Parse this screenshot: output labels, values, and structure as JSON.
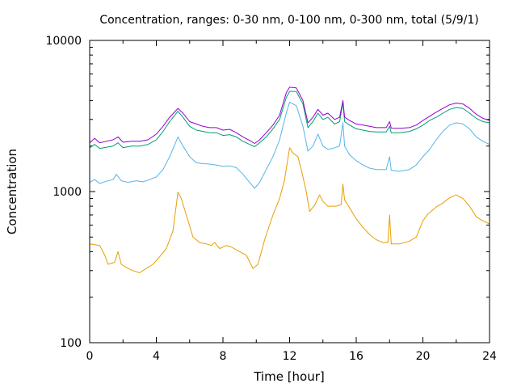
{
  "chart_data": {
    "type": "line",
    "title": "Concentration, ranges: 0-30 nm, 0-100 nm, 0-300 nm, total (5/9/1)",
    "xlabel": "Time [hour]",
    "ylabel": "Concentration",
    "xlim": [
      0,
      24
    ],
    "ylim": [
      100,
      10000
    ],
    "yscale": "log",
    "grid": false,
    "legend": "none",
    "x_ticks": [
      0,
      4,
      8,
      12,
      16,
      20,
      24
    ],
    "x_tick_labels": [
      "0",
      "4",
      "8",
      "12",
      "16",
      "20",
      "24"
    ],
    "y_ticks": [
      100,
      1000,
      10000
    ],
    "y_tick_labels": [
      "100",
      "1000",
      "10000"
    ],
    "series": [
      {
        "color": "#e69f00",
        "points": [
          [
            0,
            450
          ],
          [
            0.6,
            440
          ],
          [
            0.9,
            380
          ],
          [
            1.1,
            330
          ],
          [
            1.5,
            340
          ],
          [
            1.7,
            400
          ],
          [
            1.9,
            330
          ],
          [
            2.3,
            310
          ],
          [
            2.6,
            300
          ],
          [
            3.0,
            290
          ],
          [
            3.4,
            310
          ],
          [
            3.8,
            330
          ],
          [
            4.2,
            370
          ],
          [
            4.6,
            420
          ],
          [
            5.0,
            550
          ],
          [
            5.3,
            990
          ],
          [
            5.5,
            900
          ],
          [
            5.8,
            700
          ],
          [
            6.2,
            500
          ],
          [
            6.6,
            460
          ],
          [
            7.0,
            450
          ],
          [
            7.3,
            440
          ],
          [
            7.5,
            460
          ],
          [
            7.8,
            420
          ],
          [
            8.2,
            440
          ],
          [
            8.5,
            430
          ],
          [
            9.0,
            400
          ],
          [
            9.4,
            380
          ],
          [
            9.8,
            310
          ],
          [
            10.1,
            330
          ],
          [
            10.5,
            480
          ],
          [
            11.0,
            700
          ],
          [
            11.4,
            900
          ],
          [
            11.7,
            1200
          ],
          [
            12.0,
            1950
          ],
          [
            12.2,
            1800
          ],
          [
            12.5,
            1700
          ],
          [
            12.7,
            1400
          ],
          [
            13.0,
            1000
          ],
          [
            13.2,
            740
          ],
          [
            13.5,
            810
          ],
          [
            13.8,
            950
          ],
          [
            14.0,
            860
          ],
          [
            14.3,
            800
          ],
          [
            14.8,
            800
          ],
          [
            15.1,
            820
          ],
          [
            15.2,
            1120
          ],
          [
            15.3,
            880
          ],
          [
            15.6,
            780
          ],
          [
            16.0,
            660
          ],
          [
            16.4,
            580
          ],
          [
            16.8,
            520
          ],
          [
            17.2,
            480
          ],
          [
            17.6,
            460
          ],
          [
            17.9,
            460
          ],
          [
            18.0,
            700
          ],
          [
            18.1,
            450
          ],
          [
            18.6,
            450
          ],
          [
            19.2,
            470
          ],
          [
            19.6,
            500
          ],
          [
            20.0,
            640
          ],
          [
            20.3,
            710
          ],
          [
            20.8,
            790
          ],
          [
            21.2,
            840
          ],
          [
            21.6,
            910
          ],
          [
            22.0,
            950
          ],
          [
            22.4,
            900
          ],
          [
            22.8,
            800
          ],
          [
            23.2,
            680
          ],
          [
            23.6,
            640
          ],
          [
            24.0,
            610
          ]
        ]
      },
      {
        "color": "#56b4e9",
        "points": [
          [
            0,
            1150
          ],
          [
            0.3,
            1200
          ],
          [
            0.6,
            1130
          ],
          [
            1.0,
            1170
          ],
          [
            1.4,
            1200
          ],
          [
            1.6,
            1300
          ],
          [
            1.9,
            1180
          ],
          [
            2.3,
            1150
          ],
          [
            2.8,
            1180
          ],
          [
            3.2,
            1160
          ],
          [
            3.6,
            1200
          ],
          [
            4.0,
            1250
          ],
          [
            4.4,
            1400
          ],
          [
            4.8,
            1700
          ],
          [
            5.3,
            2300
          ],
          [
            5.6,
            2000
          ],
          [
            6.0,
            1700
          ],
          [
            6.4,
            1550
          ],
          [
            6.8,
            1530
          ],
          [
            7.2,
            1520
          ],
          [
            7.6,
            1500
          ],
          [
            8.0,
            1470
          ],
          [
            8.4,
            1480
          ],
          [
            8.8,
            1440
          ],
          [
            9.2,
            1300
          ],
          [
            9.6,
            1150
          ],
          [
            9.9,
            1050
          ],
          [
            10.2,
            1150
          ],
          [
            10.6,
            1400
          ],
          [
            11.0,
            1700
          ],
          [
            11.4,
            2200
          ],
          [
            11.8,
            3300
          ],
          [
            12.0,
            3900
          ],
          [
            12.4,
            3700
          ],
          [
            12.8,
            2700
          ],
          [
            13.1,
            1850
          ],
          [
            13.4,
            2000
          ],
          [
            13.7,
            2400
          ],
          [
            14.0,
            2000
          ],
          [
            14.3,
            1900
          ],
          [
            14.7,
            1950
          ],
          [
            15.0,
            2000
          ],
          [
            15.2,
            2850
          ],
          [
            15.3,
            2000
          ],
          [
            15.6,
            1750
          ],
          [
            16.0,
            1600
          ],
          [
            16.4,
            1500
          ],
          [
            16.8,
            1430
          ],
          [
            17.2,
            1400
          ],
          [
            17.8,
            1400
          ],
          [
            18.0,
            1700
          ],
          [
            18.1,
            1380
          ],
          [
            18.6,
            1360
          ],
          [
            19.2,
            1400
          ],
          [
            19.6,
            1500
          ],
          [
            20.0,
            1700
          ],
          [
            20.4,
            1900
          ],
          [
            20.8,
            2200
          ],
          [
            21.2,
            2500
          ],
          [
            21.6,
            2750
          ],
          [
            22.0,
            2850
          ],
          [
            22.4,
            2800
          ],
          [
            22.8,
            2600
          ],
          [
            23.2,
            2300
          ],
          [
            23.6,
            2150
          ],
          [
            24.0,
            2050
          ]
        ]
      },
      {
        "color": "#009e73",
        "points": [
          [
            0,
            1950
          ],
          [
            0.3,
            2050
          ],
          [
            0.6,
            1930
          ],
          [
            1.0,
            1960
          ],
          [
            1.4,
            2000
          ],
          [
            1.7,
            2100
          ],
          [
            2.0,
            1950
          ],
          [
            2.5,
            2000
          ],
          [
            3.0,
            2000
          ],
          [
            3.5,
            2050
          ],
          [
            4.0,
            2200
          ],
          [
            4.4,
            2500
          ],
          [
            4.8,
            2900
          ],
          [
            5.3,
            3400
          ],
          [
            5.6,
            3100
          ],
          [
            6.0,
            2700
          ],
          [
            6.4,
            2550
          ],
          [
            6.8,
            2500
          ],
          [
            7.2,
            2450
          ],
          [
            7.6,
            2450
          ],
          [
            8.0,
            2350
          ],
          [
            8.4,
            2380
          ],
          [
            8.8,
            2300
          ],
          [
            9.2,
            2150
          ],
          [
            9.6,
            2050
          ],
          [
            9.9,
            1980
          ],
          [
            10.2,
            2100
          ],
          [
            10.6,
            2300
          ],
          [
            11.0,
            2600
          ],
          [
            11.4,
            3000
          ],
          [
            11.8,
            4200
          ],
          [
            12.0,
            4600
          ],
          [
            12.4,
            4600
          ],
          [
            12.8,
            3800
          ],
          [
            13.1,
            2650
          ],
          [
            13.4,
            2900
          ],
          [
            13.7,
            3300
          ],
          [
            14.0,
            3000
          ],
          [
            14.3,
            3100
          ],
          [
            14.7,
            2800
          ],
          [
            15.0,
            2900
          ],
          [
            15.2,
            3900
          ],
          [
            15.3,
            2900
          ],
          [
            15.6,
            2750
          ],
          [
            16.0,
            2600
          ],
          [
            16.4,
            2550
          ],
          [
            16.8,
            2500
          ],
          [
            17.2,
            2480
          ],
          [
            17.8,
            2480
          ],
          [
            18.0,
            2700
          ],
          [
            18.1,
            2450
          ],
          [
            18.6,
            2450
          ],
          [
            19.2,
            2500
          ],
          [
            19.6,
            2600
          ],
          [
            20.0,
            2750
          ],
          [
            20.4,
            2950
          ],
          [
            20.8,
            3100
          ],
          [
            21.2,
            3300
          ],
          [
            21.6,
            3500
          ],
          [
            22.0,
            3600
          ],
          [
            22.4,
            3550
          ],
          [
            22.8,
            3300
          ],
          [
            23.2,
            3050
          ],
          [
            23.6,
            2900
          ],
          [
            24.0,
            2850
          ]
        ]
      },
      {
        "color": "#9400d3",
        "points": [
          [
            0,
            2100
          ],
          [
            0.3,
            2250
          ],
          [
            0.6,
            2100
          ],
          [
            1.0,
            2150
          ],
          [
            1.4,
            2200
          ],
          [
            1.7,
            2300
          ],
          [
            2.0,
            2120
          ],
          [
            2.5,
            2150
          ],
          [
            3.0,
            2150
          ],
          [
            3.5,
            2200
          ],
          [
            4.0,
            2400
          ],
          [
            4.4,
            2700
          ],
          [
            4.8,
            3100
          ],
          [
            5.3,
            3550
          ],
          [
            5.6,
            3300
          ],
          [
            6.0,
            2900
          ],
          [
            6.4,
            2800
          ],
          [
            6.8,
            2700
          ],
          [
            7.2,
            2650
          ],
          [
            7.6,
            2650
          ],
          [
            8.0,
            2550
          ],
          [
            8.4,
            2580
          ],
          [
            8.8,
            2450
          ],
          [
            9.2,
            2300
          ],
          [
            9.6,
            2180
          ],
          [
            9.9,
            2080
          ],
          [
            10.2,
            2200
          ],
          [
            10.6,
            2450
          ],
          [
            11.0,
            2750
          ],
          [
            11.4,
            3200
          ],
          [
            11.8,
            4500
          ],
          [
            12.0,
            4900
          ],
          [
            12.4,
            4850
          ],
          [
            12.8,
            4000
          ],
          [
            13.1,
            2850
          ],
          [
            13.4,
            3100
          ],
          [
            13.7,
            3500
          ],
          [
            14.0,
            3200
          ],
          [
            14.3,
            3300
          ],
          [
            14.7,
            3000
          ],
          [
            15.0,
            3100
          ],
          [
            15.2,
            4000
          ],
          [
            15.3,
            3100
          ],
          [
            15.6,
            2950
          ],
          [
            16.0,
            2800
          ],
          [
            16.4,
            2750
          ],
          [
            16.8,
            2700
          ],
          [
            17.2,
            2650
          ],
          [
            17.8,
            2650
          ],
          [
            18.0,
            2900
          ],
          [
            18.1,
            2630
          ],
          [
            18.6,
            2620
          ],
          [
            19.2,
            2650
          ],
          [
            19.6,
            2750
          ],
          [
            20.0,
            2950
          ],
          [
            20.4,
            3150
          ],
          [
            20.8,
            3350
          ],
          [
            21.2,
            3550
          ],
          [
            21.6,
            3750
          ],
          [
            22.0,
            3850
          ],
          [
            22.4,
            3800
          ],
          [
            22.8,
            3550
          ],
          [
            23.2,
            3250
          ],
          [
            23.6,
            3050
          ],
          [
            24.0,
            2950
          ]
        ]
      }
    ]
  }
}
